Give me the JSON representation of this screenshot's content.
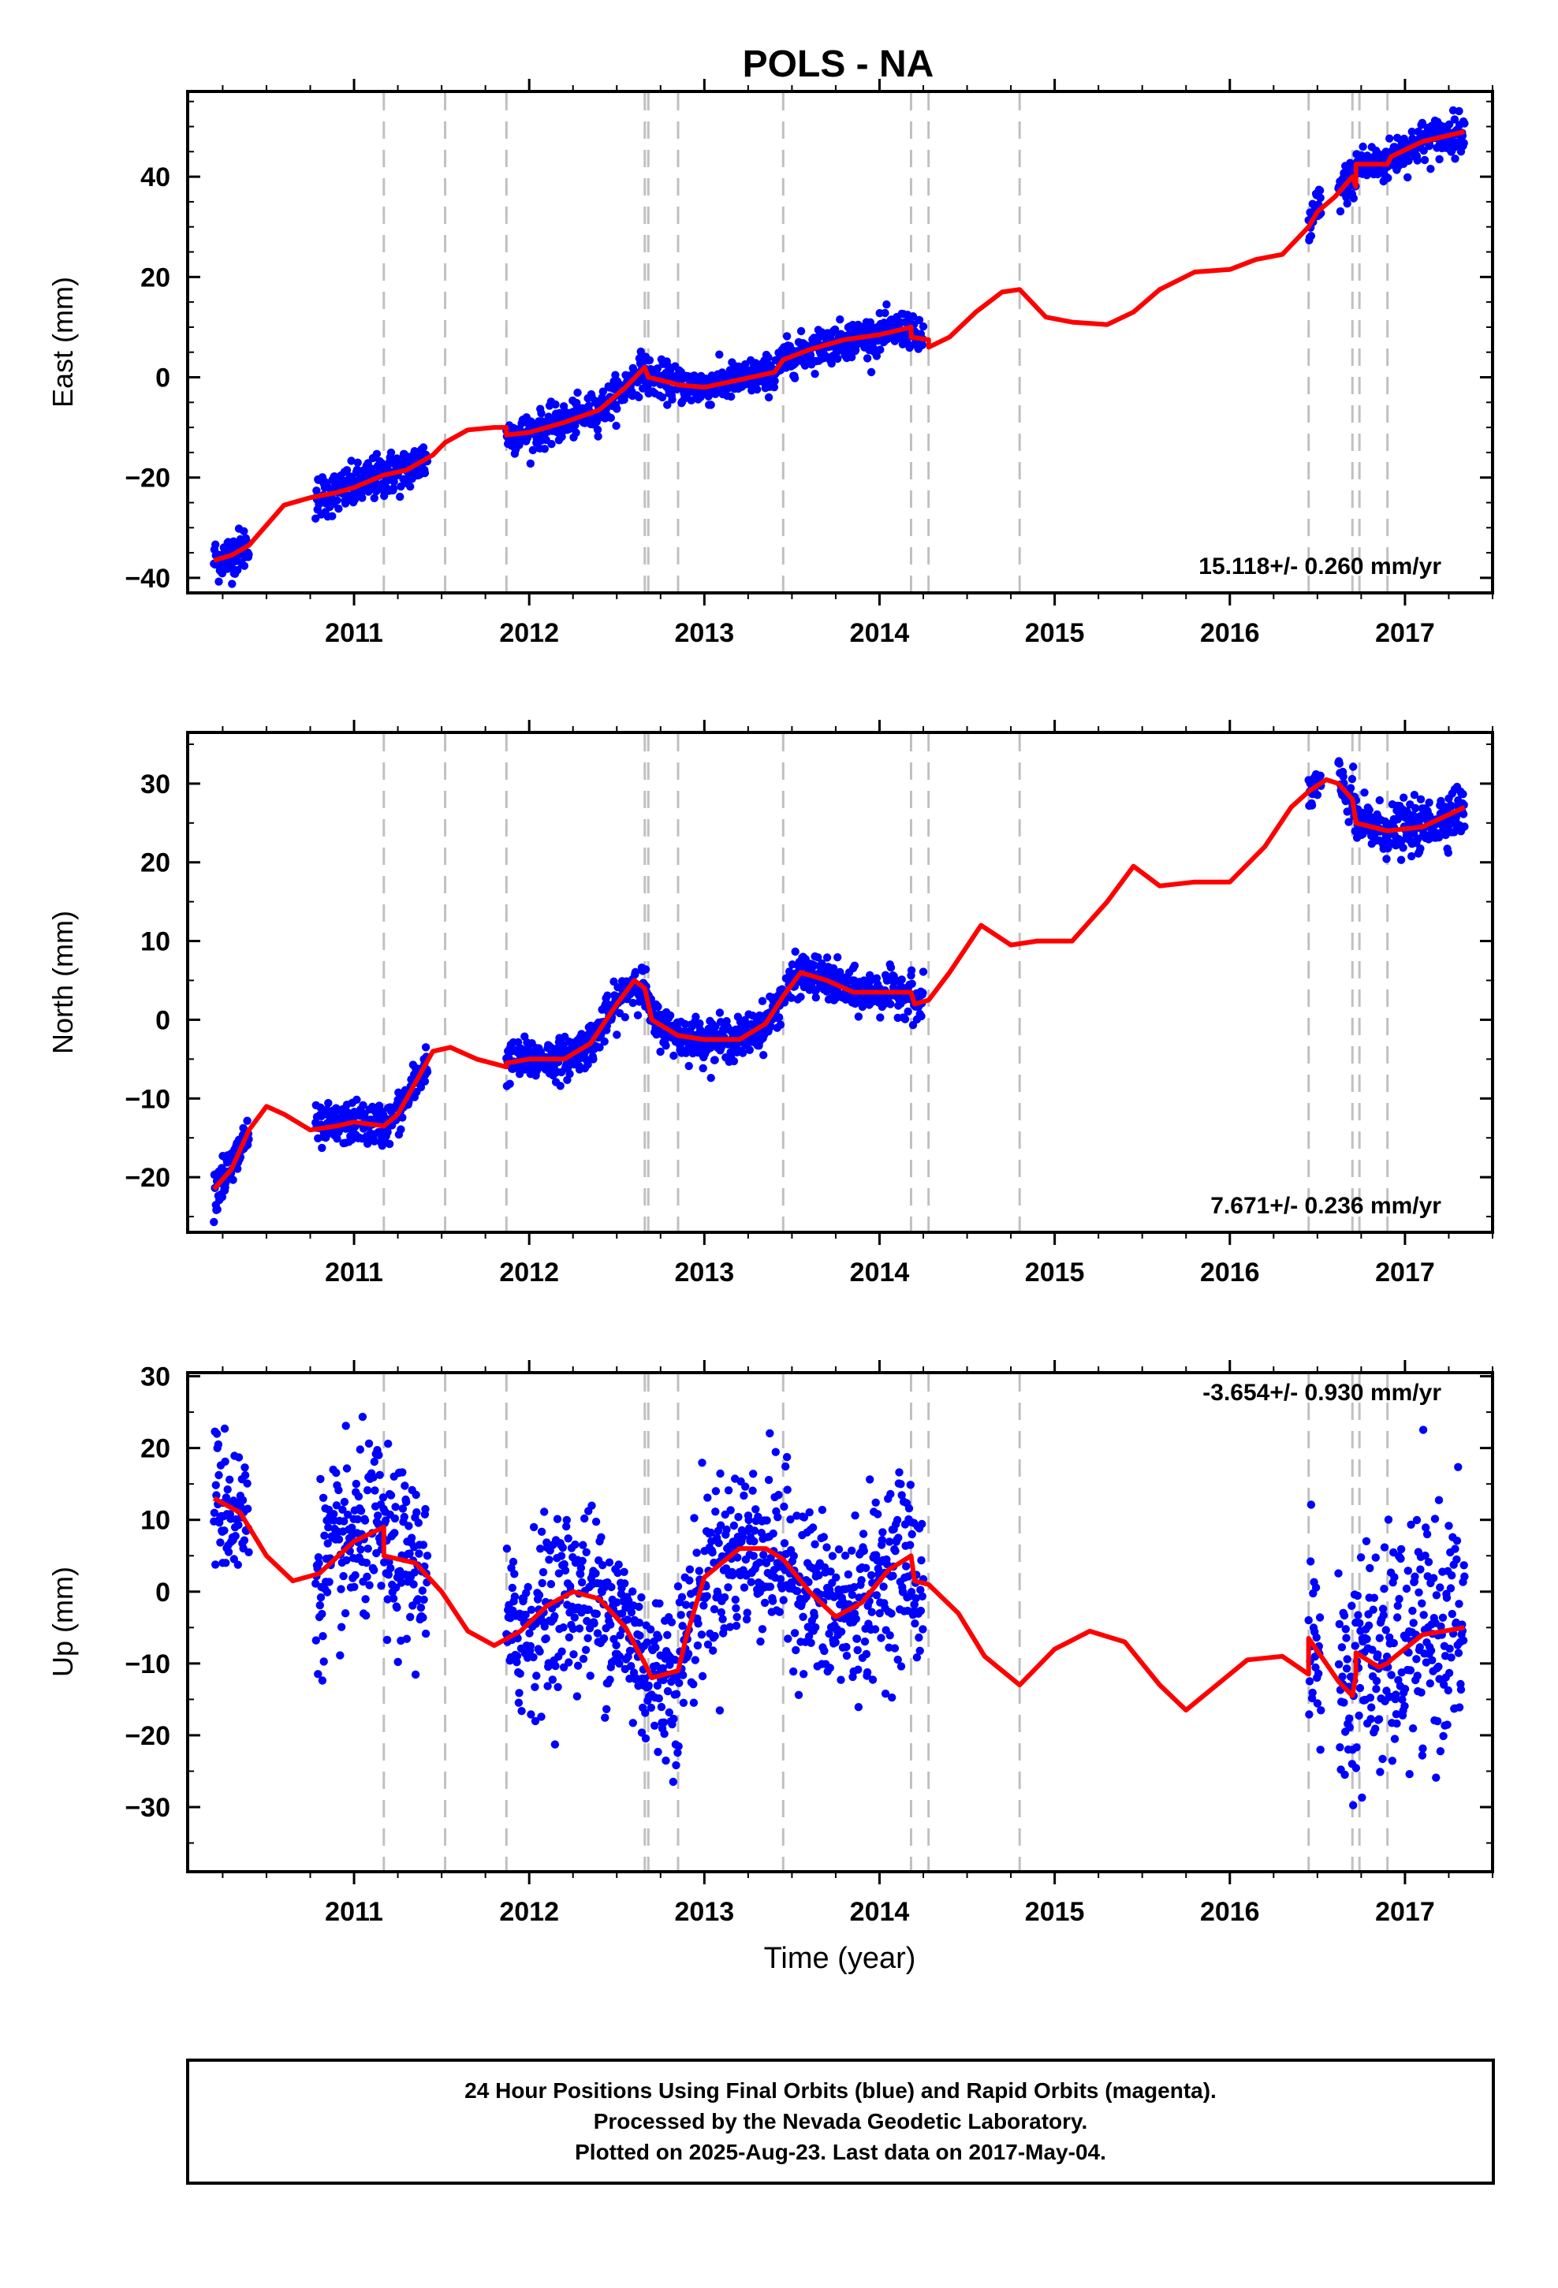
{
  "chart": {
    "title": "POLS - NA",
    "xlabel": "Time (year)"
  },
  "footer": {
    "lines": [
      "24 Hour Positions Using Final Orbits (blue) and Rapid Orbits (magenta).",
      "Processed by the Nevada Geodetic Laboratory.",
      "Plotted on 2025-Aug-23. Last data on 2017-May-04."
    ]
  },
  "colors": {
    "data_points": "#0000ff",
    "model_line": "#ff0000",
    "event_lines": "#c0c0c0",
    "frame": "#000000"
  },
  "chart_data": [
    {
      "type": "scatter",
      "name": "east",
      "ylabel": "East (mm)",
      "rate_label": "15.118+/- 0.260 mm/yr",
      "xlim": [
        2010.05,
        2017.5
      ],
      "ylim": [
        -43,
        57
      ],
      "x_ticks": [
        2011,
        2012,
        2013,
        2014,
        2015,
        2016,
        2017
      ],
      "y_ticks": [
        -40,
        -20,
        0,
        20,
        40
      ],
      "grid": false,
      "event_lines_x": [
        2011.17,
        2011.52,
        2011.87,
        2012.66,
        2012.68,
        2012.85,
        2013.45,
        2014.18,
        2014.28,
        2014.8,
        2016.45,
        2016.7,
        2016.74,
        2016.9
      ],
      "data_segments": [
        {
          "x": [
            2010.2,
            2010.4
          ],
          "sd": 2.2
        },
        {
          "x": [
            2010.78,
            2011.42
          ],
          "sd": 2.2
        },
        {
          "x": [
            2011.87,
            2014.25
          ],
          "sd": 1.8
        },
        {
          "x": [
            2016.45,
            2016.52
          ],
          "sd": 2.5
        },
        {
          "x": [
            2016.62,
            2017.34
          ],
          "sd": 2.0
        }
      ],
      "model": {
        "x": [
          2010.2,
          2010.3,
          2010.4,
          2010.5,
          2010.6,
          2010.75,
          2010.9,
          2011.0,
          2011.1,
          2011.17,
          2011.3,
          2011.45,
          2011.52,
          2011.65,
          2011.8,
          2011.87,
          2011.87,
          2012.0,
          2012.2,
          2012.4,
          2012.55,
          2012.66,
          2012.68,
          2012.8,
          2012.85,
          2013.0,
          2013.2,
          2013.4,
          2013.45,
          2013.6,
          2013.8,
          2014.0,
          2014.18,
          2014.18,
          2014.28,
          2014.28,
          2014.4,
          2014.55,
          2014.7,
          2014.8,
          2014.95,
          2015.1,
          2015.3,
          2015.45,
          2015.6,
          2015.8,
          2016.0,
          2016.15,
          2016.3,
          2016.45,
          2016.5,
          2016.6,
          2016.7,
          2016.72,
          2016.72,
          2016.85,
          2016.9,
          2016.92,
          2017.1,
          2017.34
        ],
        "y": [
          -36.5,
          -35.5,
          -33.5,
          -29.5,
          -25.5,
          -24,
          -23,
          -22,
          -20.5,
          -19.5,
          -18.5,
          -15.5,
          -13,
          -10.5,
          -10,
          -10,
          -11.5,
          -11,
          -9,
          -6.5,
          -2,
          2,
          0,
          -1,
          -1.5,
          -2,
          -0.5,
          1,
          3.5,
          5.5,
          7.5,
          8.5,
          10,
          8,
          7.5,
          6,
          8,
          13,
          17,
          17.5,
          12,
          11,
          10.5,
          13,
          17.5,
          21,
          21.5,
          23.5,
          24.5,
          30,
          33,
          36,
          40,
          38,
          42.5,
          42.5,
          42.5,
          44,
          47,
          49
        ]
      }
    },
    {
      "type": "scatter",
      "name": "north",
      "ylabel": "North (mm)",
      "rate_label": "7.671+/- 0.236 mm/yr",
      "xlim": [
        2010.05,
        2017.5
      ],
      "ylim": [
        -27,
        36.5
      ],
      "x_ticks": [
        2011,
        2012,
        2013,
        2014,
        2015,
        2016,
        2017
      ],
      "y_ticks": [
        -20,
        -10,
        0,
        10,
        20,
        30
      ],
      "grid": false,
      "event_lines_x": [
        2011.17,
        2011.52,
        2011.87,
        2012.66,
        2012.68,
        2012.85,
        2013.45,
        2014.18,
        2014.28,
        2014.8,
        2016.45,
        2016.7,
        2016.74,
        2016.9
      ],
      "data_segments": [
        {
          "x": [
            2010.2,
            2010.4
          ],
          "sd": 1.6
        },
        {
          "x": [
            2010.78,
            2011.42
          ],
          "sd": 1.3
        },
        {
          "x": [
            2011.87,
            2014.25
          ],
          "sd": 1.3
        },
        {
          "x": [
            2016.45,
            2016.52
          ],
          "sd": 1.5
        },
        {
          "x": [
            2016.62,
            2017.34
          ],
          "sd": 1.6
        }
      ],
      "model": {
        "x": [
          2010.2,
          2010.3,
          2010.4,
          2010.5,
          2010.6,
          2010.75,
          2010.9,
          2011.0,
          2011.17,
          2011.25,
          2011.35,
          2011.45,
          2011.55,
          2011.7,
          2011.87,
          2011.87,
          2012.0,
          2012.2,
          2012.35,
          2012.5,
          2012.6,
          2012.66,
          2012.7,
          2012.85,
          2013.0,
          2013.2,
          2013.35,
          2013.45,
          2013.55,
          2013.7,
          2013.85,
          2014.0,
          2014.18,
          2014.2,
          2014.28,
          2014.4,
          2014.58,
          2014.75,
          2014.9,
          2015.1,
          2015.3,
          2015.45,
          2015.6,
          2015.8,
          2016.0,
          2016.2,
          2016.35,
          2016.45,
          2016.55,
          2016.62,
          2016.7,
          2016.72,
          2016.9,
          2017.1,
          2017.34
        ],
        "y": [
          -21.5,
          -19,
          -14,
          -11,
          -12,
          -14,
          -13.5,
          -13,
          -13.5,
          -12,
          -8,
          -4,
          -3.5,
          -5,
          -6,
          -5.5,
          -5,
          -5,
          -3,
          2,
          5,
          4,
          0,
          -2,
          -2.5,
          -2.5,
          -0.5,
          3,
          6,
          5,
          3.5,
          3.5,
          3.5,
          2,
          2.5,
          6,
          12,
          9.5,
          10,
          10,
          15,
          19.5,
          17,
          17.5,
          17.5,
          22,
          27,
          29,
          30.5,
          30,
          28,
          25,
          24,
          24.5,
          27
        ]
      }
    },
    {
      "type": "scatter",
      "name": "up",
      "ylabel": "Up (mm)",
      "rate_label": "-3.654+/- 0.930 mm/yr",
      "xlim": [
        2010.05,
        2017.5
      ],
      "ylim": [
        -39,
        30.5
      ],
      "x_ticks": [
        2011,
        2012,
        2013,
        2014,
        2015,
        2016,
        2017
      ],
      "y_ticks": [
        -30,
        -20,
        -10,
        0,
        10,
        20,
        30
      ],
      "grid": false,
      "event_lines_x": [
        2011.17,
        2011.52,
        2011.87,
        2012.66,
        2012.68,
        2012.85,
        2013.45,
        2014.18,
        2014.28,
        2014.8,
        2016.45,
        2016.7,
        2016.74,
        2016.9
      ],
      "data_segments": [
        {
          "x": [
            2010.2,
            2010.4
          ],
          "sd": 5.0
        },
        {
          "x": [
            2010.78,
            2011.42
          ],
          "sd": 6.0
        },
        {
          "x": [
            2011.87,
            2014.25
          ],
          "sd": 6.0
        },
        {
          "x": [
            2016.45,
            2016.52
          ],
          "sd": 7.0
        },
        {
          "x": [
            2016.62,
            2017.34
          ],
          "sd": 8.0
        }
      ],
      "model": {
        "x": [
          2010.2,
          2010.35,
          2010.5,
          2010.65,
          2010.8,
          2011.0,
          2011.17,
          2011.17,
          2011.35,
          2011.5,
          2011.65,
          2011.8,
          2011.95,
          2012.1,
          2012.25,
          2012.4,
          2012.55,
          2012.66,
          2012.7,
          2012.85,
          2012.9,
          2013.0,
          2013.2,
          2013.35,
          2013.45,
          2013.6,
          2013.75,
          2013.9,
          2014.05,
          2014.18,
          2014.2,
          2014.28,
          2014.45,
          2014.6,
          2014.8,
          2015.0,
          2015.2,
          2015.4,
          2015.6,
          2015.75,
          2015.9,
          2016.1,
          2016.3,
          2016.45,
          2016.45,
          2016.55,
          2016.62,
          2016.7,
          2016.72,
          2016.72,
          2016.85,
          2016.9,
          2016.92,
          2017.1,
          2017.34
        ],
        "y": [
          13,
          11,
          5,
          1.5,
          2.5,
          7,
          9,
          5,
          4,
          0,
          -5.5,
          -7.5,
          -5.5,
          -2,
          0,
          -1,
          -5,
          -10,
          -12,
          -11,
          -6,
          2,
          6,
          6,
          4.5,
          0,
          -3.5,
          -1.5,
          3,
          5,
          1.5,
          1,
          -3,
          -9,
          -13,
          -8,
          -5.5,
          -7,
          -13,
          -16.5,
          -13.5,
          -9.5,
          -9,
          -11.5,
          -6.5,
          -10,
          -12.5,
          -14.5,
          -11.5,
          -8.5,
          -10.5,
          -10,
          -9.5,
          -6,
          -5
        ]
      }
    }
  ]
}
